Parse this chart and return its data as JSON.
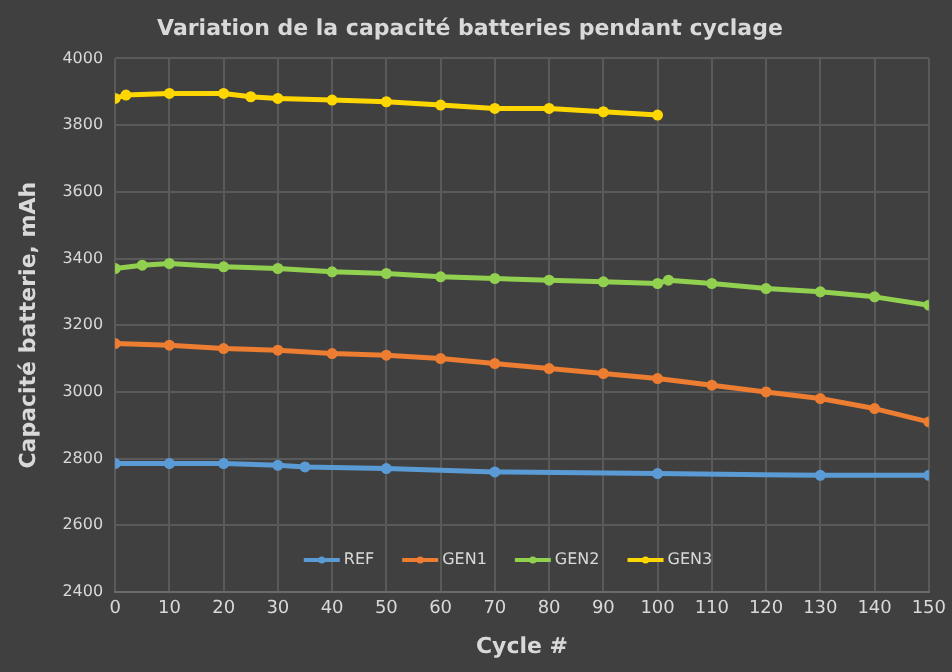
{
  "chart_data": {
    "type": "line",
    "title": "Variation de la capacité batteries pendant cyclage",
    "xlabel": "Cycle #",
    "ylabel": "Capacité batterie, mAh",
    "xlim": [
      0,
      150
    ],
    "xticks": [
      0,
      10,
      20,
      30,
      40,
      50,
      60,
      70,
      80,
      90,
      100,
      110,
      120,
      130,
      140,
      150
    ],
    "ylim": [
      2400,
      4000
    ],
    "yticks": [
      2400,
      2600,
      2800,
      3000,
      3200,
      3400,
      3600,
      3800,
      4000
    ],
    "grid": true,
    "legend": "bottom",
    "marker": "circle",
    "line_style": "solid",
    "series": [
      {
        "name": "REF",
        "color": "#5b9bd5",
        "x": [
          0,
          10,
          20,
          30,
          35,
          50,
          70,
          100,
          130,
          150
        ],
        "values": [
          2785,
          2785,
          2785,
          2780,
          2775,
          2770,
          2760,
          2755,
          2750,
          2750
        ]
      },
      {
        "name": "GEN1",
        "color": "#ed7d31",
        "x": [
          0,
          10,
          20,
          30,
          40,
          50,
          60,
          70,
          80,
          90,
          100,
          110,
          120,
          130,
          140,
          150
        ],
        "values": [
          3145,
          3140,
          3130,
          3125,
          3115,
          3110,
          3100,
          3085,
          3070,
          3055,
          3040,
          3020,
          3000,
          2980,
          2950,
          2910
        ]
      },
      {
        "name": "GEN2",
        "color": "#92d050",
        "x": [
          0,
          5,
          10,
          20,
          30,
          40,
          50,
          60,
          70,
          80,
          90,
          100,
          102,
          110,
          120,
          130,
          140,
          150
        ],
        "values": [
          3370,
          3380,
          3385,
          3375,
          3370,
          3360,
          3355,
          3345,
          3340,
          3335,
          3330,
          3325,
          3335,
          3325,
          3310,
          3300,
          3285,
          3260
        ]
      },
      {
        "name": "GEN3",
        "color": "#ffd700",
        "x": [
          0,
          2,
          10,
          20,
          25,
          30,
          40,
          50,
          60,
          70,
          80,
          90,
          100
        ],
        "values": [
          3880,
          3890,
          3895,
          3895,
          3885,
          3880,
          3875,
          3870,
          3860,
          3850,
          3850,
          3840,
          3830
        ]
      }
    ]
  }
}
